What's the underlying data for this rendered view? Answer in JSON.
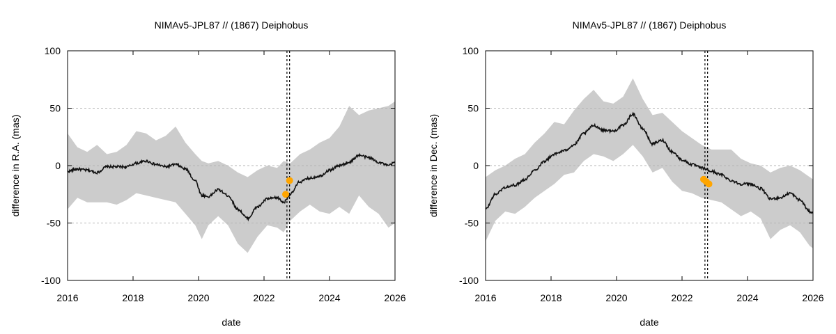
{
  "figure_title": "NIMAv5-JPL87 // (1867) Deiphobus",
  "chart_data": [
    {
      "type": "line",
      "title": "NIMAv5-JPL87 // (1867) Deiphobus",
      "xlabel": "date",
      "ylabel": "difference in R.A. (mas)",
      "xlim": [
        2016,
        2026
      ],
      "ylim": [
        -100,
        100
      ],
      "xticks": [
        2016,
        2018,
        2020,
        2022,
        2024,
        2026
      ],
      "xtick_labels": [
        "2016",
        "2018",
        "2020",
        "2022",
        "2024",
        "2026"
      ],
      "yticks": [
        -100,
        -50,
        0,
        50,
        100
      ],
      "ytick_labels": [
        "-100",
        "-50",
        "0",
        "50",
        "100"
      ],
      "grid": "horizontal dashed",
      "colors": {
        "band": "#cccccc",
        "line": "#111111",
        "points": "#ffa500"
      },
      "series": [
        {
          "name": "difference",
          "x": [
            2016.0,
            2016.3,
            2016.6,
            2016.9,
            2017.2,
            2017.5,
            2017.8,
            2018.1,
            2018.4,
            2018.7,
            2019.0,
            2019.3,
            2019.6,
            2019.9,
            2020.1,
            2020.3,
            2020.6,
            2020.9,
            2021.2,
            2021.5,
            2021.8,
            2022.1,
            2022.4,
            2022.6,
            2022.8,
            2023.1,
            2023.4,
            2023.7,
            2024.0,
            2024.3,
            2024.6,
            2024.9,
            2025.2,
            2025.5,
            2025.8,
            2026.0
          ],
          "values": [
            -5,
            -3,
            -4,
            -6,
            -1,
            -1,
            -1,
            2,
            4,
            1,
            -1,
            1,
            -3,
            -13,
            -26,
            -27,
            -21,
            -26,
            -38,
            -46,
            -36,
            -29,
            -28,
            -32,
            -25,
            -14,
            -11,
            -9,
            -4,
            0,
            3,
            9,
            7,
            3,
            0,
            3
          ],
          "upper": [
            28,
            16,
            12,
            18,
            10,
            12,
            18,
            30,
            28,
            22,
            26,
            34,
            20,
            10,
            4,
            2,
            4,
            0,
            -6,
            -10,
            -4,
            0,
            -2,
            4,
            2,
            10,
            14,
            20,
            24,
            34,
            52,
            44,
            48,
            50,
            52,
            56
          ],
          "lower": [
            -38,
            -28,
            -32,
            -32,
            -32,
            -34,
            -30,
            -24,
            -26,
            -28,
            -30,
            -32,
            -42,
            -52,
            -64,
            -52,
            -44,
            -52,
            -68,
            -76,
            -62,
            -52,
            -54,
            -58,
            -48,
            -40,
            -34,
            -40,
            -42,
            -36,
            -42,
            -26,
            -36,
            -42,
            -54,
            -50
          ]
        }
      ],
      "observations": {
        "x": [
          2022.66,
          2022.78
        ],
        "y": [
          -25,
          -13
        ]
      },
      "vertical_lines": [
        2022.7,
        2022.78
      ]
    },
    {
      "type": "line",
      "title": "NIMAv5-JPL87 // (1867) Deiphobus",
      "xlabel": "date",
      "ylabel": "difference in Dec. (mas)",
      "xlim": [
        2016,
        2026
      ],
      "ylim": [
        -100,
        100
      ],
      "xticks": [
        2016,
        2018,
        2020,
        2022,
        2024,
        2026
      ],
      "xtick_labels": [
        "2016",
        "2018",
        "2020",
        "2022",
        "2024",
        "2026"
      ],
      "yticks": [
        -100,
        -50,
        0,
        50,
        100
      ],
      "ytick_labels": [
        "-100",
        "-50",
        "0",
        "50",
        "100"
      ],
      "grid": "horizontal dashed",
      "colors": {
        "band": "#cccccc",
        "line": "#111111",
        "points": "#ffa500"
      },
      "series": [
        {
          "name": "difference",
          "x": [
            2016.0,
            2016.3,
            2016.6,
            2016.9,
            2017.2,
            2017.5,
            2017.8,
            2018.1,
            2018.4,
            2018.7,
            2019.0,
            2019.3,
            2019.6,
            2019.9,
            2020.2,
            2020.5,
            2020.8,
            2021.1,
            2021.4,
            2021.7,
            2022.0,
            2022.3,
            2022.6,
            2022.9,
            2023.2,
            2023.5,
            2023.8,
            2024.1,
            2024.4,
            2024.7,
            2025.0,
            2025.3,
            2025.6,
            2025.9,
            2026.0
          ],
          "values": [
            -38,
            -25,
            -19,
            -17,
            -12,
            -4,
            4,
            10,
            13,
            18,
            28,
            35,
            31,
            30,
            35,
            45,
            32,
            19,
            22,
            12,
            5,
            1,
            -2,
            -5,
            -8,
            -13,
            -16,
            -16,
            -20,
            -29,
            -28,
            -24,
            -30,
            -40,
            -41
          ],
          "upper": [
            -10,
            -4,
            0,
            6,
            10,
            20,
            28,
            38,
            36,
            48,
            58,
            66,
            56,
            54,
            60,
            76,
            58,
            44,
            46,
            38,
            30,
            24,
            18,
            14,
            14,
            14,
            6,
            2,
            0,
            -6,
            -2,
            0,
            -4,
            -10,
            -12
          ],
          "lower": [
            -66,
            -48,
            -40,
            -42,
            -36,
            -28,
            -22,
            -16,
            -8,
            -6,
            4,
            10,
            8,
            4,
            10,
            18,
            8,
            -6,
            -2,
            -14,
            -22,
            -24,
            -28,
            -30,
            -32,
            -38,
            -44,
            -40,
            -46,
            -64,
            -56,
            -52,
            -58,
            -70,
            -72
          ]
        }
      ],
      "observations": {
        "x": [
          2022.66,
          2022.74,
          2022.82
        ],
        "y": [
          -12,
          -14,
          -16
        ]
      },
      "vertical_lines": [
        2022.7,
        2022.78
      ]
    }
  ]
}
